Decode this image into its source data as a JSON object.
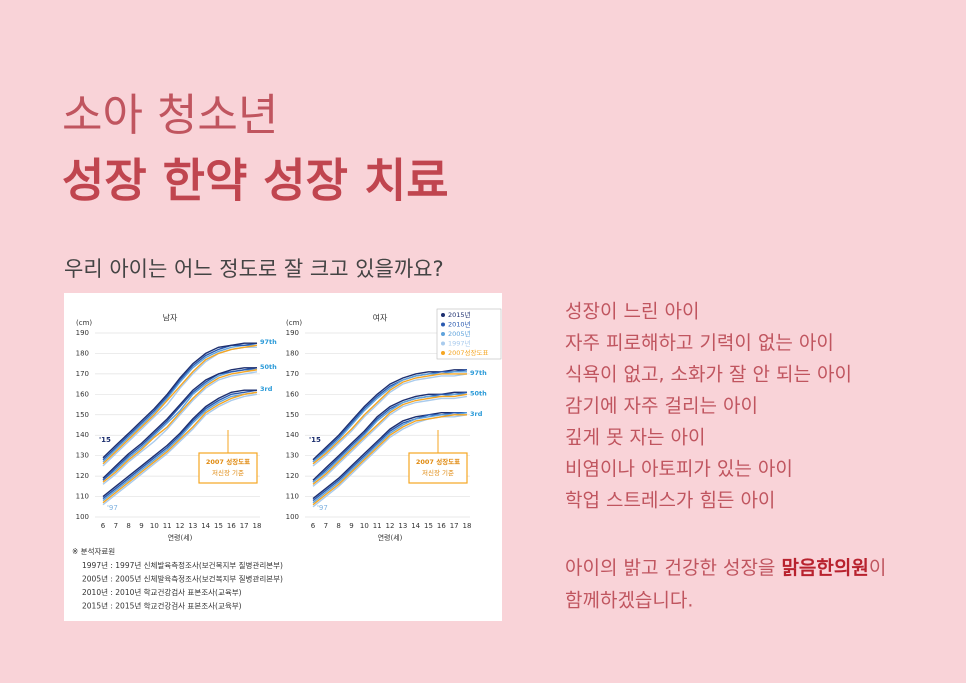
{
  "header": {
    "title_light": "소아 청소년",
    "title_bold": "성장 한약 성장 치료"
  },
  "question": "우리 아이는 어느 정도로 잘 크고 있을까요?",
  "symptoms": [
    "성장이 느린 아이",
    "자주 피로해하고 기력이 없는 아이",
    "식욕이 없고, 소화가 잘 안 되는 아이",
    "감기에 자주 걸리는 아이",
    "깊게 못 자는 아이",
    "비염이나 아토피가 있는 아이",
    "학업 스트레스가 힘든 아이"
  ],
  "closing": {
    "before": "아이의 밝고 건강한 성장을 ",
    "highlight": "맑음한의원",
    "after": "이",
    "line2": "함께하겠습니다."
  },
  "notes": {
    "title": "※ 분석자료원",
    "lines": [
      "1997년 : 1997년 신체발육측정조사(보건복지부 질병관리본부)",
      "2005년 : 2005년 신체발육측정조사(보건복지부 질병관리본부)",
      "2010년 : 2010년 학교건강검사 표본조사(교육부)",
      "2015년 : 2015년 학교건강검사 표본조사(교육부)"
    ]
  },
  "chart_data": [
    {
      "type": "line",
      "title": "남자",
      "y_label": "(cm)",
      "x_label": "연령(세)",
      "x": [
        6,
        7,
        8,
        9,
        10,
        11,
        12,
        13,
        14,
        15,
        16,
        17,
        18
      ],
      "xlim": [
        5.6,
        18.4
      ],
      "xticks": [
        6,
        7,
        8,
        9,
        10,
        11,
        12,
        13,
        14,
        15,
        16,
        17,
        18
      ],
      "ylim": [
        100,
        190
      ],
      "yticks": [
        100,
        110,
        120,
        130,
        140,
        150,
        160,
        170,
        180,
        190
      ],
      "grid": true,
      "legend": false,
      "curve_labels": [
        "97th",
        "50th",
        "3rd"
      ],
      "annotations": [
        "'15",
        "'97"
      ],
      "callout": [
        "2007 성장도표",
        "저신장 기준"
      ],
      "series": [
        {
          "color": "#a9cbed",
          "curves": [
            [
              125,
              131,
              137,
              143,
              149,
              155,
              163,
              170,
              176,
              180,
              182,
              183,
              183
            ],
            [
              116,
              121,
              127,
              132,
              137,
              143,
              150,
              157,
              163,
              167,
              169,
              170,
              171
            ],
            [
              106,
              111,
              116,
              121,
              126,
              131,
              137,
              143,
              150,
              154,
              157,
              159,
              160
            ]
          ]
        },
        {
          "color": "#5fa3dc",
          "curves": [
            [
              127,
              133,
              139,
              145,
              151,
              158,
              166,
              173,
              178,
              181,
              183,
              184,
              184
            ],
            [
              118,
              123,
              129,
              134,
              140,
              146,
              152,
              160,
              165,
              169,
              171,
              172,
              172
            ],
            [
              108,
              113,
              118,
              123,
              128,
              133,
              139,
              146,
              152,
              156,
              159,
              160,
              161
            ]
          ]
        },
        {
          "color": "#f5a623",
          "curves": [
            [
              126,
              132,
              138,
              144,
              150,
              157,
              164,
              171,
              177,
              180,
              182,
              183,
              184
            ],
            [
              117,
              122,
              128,
              133,
              139,
              144,
              151,
              158,
              164,
              168,
              170,
              171,
              172
            ],
            [
              107,
              112,
              117,
              122,
              127,
              132,
              138,
              144,
              151,
              155,
              158,
              160,
              161
            ]
          ]
        },
        {
          "color": "#2a5ab0",
          "curves": [
            [
              128,
              134,
              140,
              146,
              152,
              159,
              167,
              174,
              179,
              182,
              184,
              184,
              185
            ],
            [
              118,
              124,
              130,
              135,
              141,
              147,
              154,
              161,
              166,
              170,
              171,
              172,
              173
            ],
            [
              109,
              114,
              119,
              124,
              129,
              134,
              140,
              147,
              153,
              157,
              160,
              161,
              162
            ]
          ]
        },
        {
          "color": "#1d2f6f",
          "curves": [
            [
              129,
              135,
              141,
              147,
              153,
              160,
              168,
              175,
              180,
              183,
              184,
              185,
              185
            ],
            [
              119,
              125,
              131,
              136,
              142,
              148,
              155,
              162,
              167,
              170,
              172,
              173,
              173
            ],
            [
              110,
              115,
              120,
              125,
              130,
              135,
              141,
              148,
              154,
              158,
              161,
              162,
              162
            ]
          ]
        }
      ]
    },
    {
      "type": "line",
      "title": "여자",
      "y_label": "(cm)",
      "x_label": "연령(세)",
      "x": [
        6,
        7,
        8,
        9,
        10,
        11,
        12,
        13,
        14,
        15,
        16,
        17,
        18
      ],
      "xlim": [
        5.6,
        18.4
      ],
      "xticks": [
        6,
        7,
        8,
        9,
        10,
        11,
        12,
        13,
        14,
        15,
        16,
        17,
        18
      ],
      "ylim": [
        100,
        190
      ],
      "yticks": [
        100,
        110,
        120,
        130,
        140,
        150,
        160,
        170,
        180,
        190
      ],
      "grid": true,
      "legend": true,
      "curve_labels": [
        "97th",
        "50th",
        "3rd"
      ],
      "annotations": [
        "'15",
        "'97"
      ],
      "callout": [
        "2007 성장도표",
        "저신장 기준"
      ],
      "series": [
        {
          "name": "2015년",
          "color": "#1d2f6f",
          "curves": [
            [
              128,
              134,
              140,
              147,
              154,
              160,
              165,
              168,
              170,
              171,
              171,
              172,
              172
            ],
            [
              118,
              124,
              130,
              136,
              142,
              149,
              154,
              157,
              159,
              160,
              160,
              161,
              161
            ],
            [
              109,
              114,
              119,
              125,
              131,
              137,
              143,
              147,
              149,
              150,
              151,
              151,
              151
            ]
          ]
        },
        {
          "name": "2010년",
          "color": "#2a5ab0",
          "curves": [
            [
              127,
              133,
              139,
              146,
              153,
              159,
              164,
              167,
              169,
              170,
              171,
              171,
              172
            ],
            [
              117,
              123,
              129,
              135,
              141,
              148,
              153,
              156,
              158,
              159,
              160,
              160,
              161
            ],
            [
              108,
              113,
              118,
              124,
              130,
              136,
              142,
              146,
              148,
              150,
              150,
              151,
              151
            ]
          ]
        },
        {
          "name": "2005년",
          "color": "#5fa3dc",
          "curves": [
            [
              127,
              132,
              138,
              145,
              152,
              158,
              163,
              167,
              169,
              170,
              170,
              171,
              171
            ],
            [
              117,
              122,
              128,
              134,
              140,
              147,
              152,
              156,
              158,
              159,
              159,
              160,
              160
            ],
            [
              107,
              112,
              117,
              123,
              129,
              135,
              141,
              145,
              148,
              149,
              150,
              150,
              151
            ]
          ]
        },
        {
          "name": "1997년",
          "color": "#a9cbed",
          "curves": [
            [
              125,
              130,
              136,
              142,
              149,
              155,
              161,
              165,
              167,
              168,
              169,
              169,
              170
            ],
            [
              115,
              120,
              126,
              132,
              138,
              144,
              150,
              154,
              156,
              157,
              158,
              158,
              159
            ],
            [
              105,
              110,
              115,
              121,
              127,
              133,
              139,
              143,
              146,
              148,
              149,
              149,
              150
            ]
          ]
        },
        {
          "name": "2007성장도표",
          "color": "#f5a623",
          "curves": [
            [
              126,
              131,
              137,
              143,
              150,
              156,
              162,
              166,
              168,
              169,
              170,
              170,
              170
            ],
            [
              116,
              121,
              127,
              133,
              139,
              145,
              151,
              155,
              157,
              158,
              159,
              159,
              160
            ],
            [
              106,
              111,
              116,
              122,
              128,
              134,
              140,
              144,
              147,
              148,
              149,
              150,
              150
            ]
          ]
        }
      ]
    }
  ]
}
